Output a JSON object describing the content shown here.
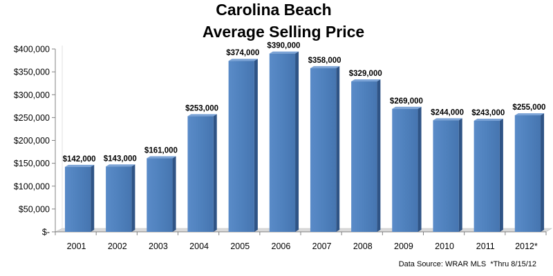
{
  "chart_data": {
    "type": "bar",
    "title": "Carolina Beach",
    "subtitle": "Average Selling Price",
    "categories": [
      "2001",
      "2002",
      "2003",
      "2004",
      "2005",
      "2006",
      "2007",
      "2008",
      "2009",
      "2010",
      "2011",
      "2012*"
    ],
    "values": [
      142000,
      143000,
      161000,
      253000,
      374000,
      390000,
      358000,
      329000,
      269000,
      244000,
      243000,
      255000
    ],
    "data_labels": [
      "$142,000",
      "$143,000",
      "$161,000",
      "$253,000",
      "$374,000",
      "$390,000",
      "$358,000",
      "$329,000",
      "$269,000",
      "$244,000",
      "$243,000",
      "$255,000"
    ],
    "y_ticks": [
      0,
      50000,
      100000,
      150000,
      200000,
      250000,
      300000,
      350000,
      400000
    ],
    "y_tick_labels": [
      "$-",
      "$50,000",
      "$100,000",
      "$150,000",
      "$200,000",
      "$250,000",
      "$300,000",
      "$350,000",
      "$400,000"
    ],
    "ylim": [
      0,
      400000
    ],
    "xlabel": "",
    "ylabel": "",
    "legend": "none",
    "grid": false,
    "bar_color": "#4f81bd",
    "source_note": "Data Source: WRAR MLS  *Thru 8/15/12"
  }
}
